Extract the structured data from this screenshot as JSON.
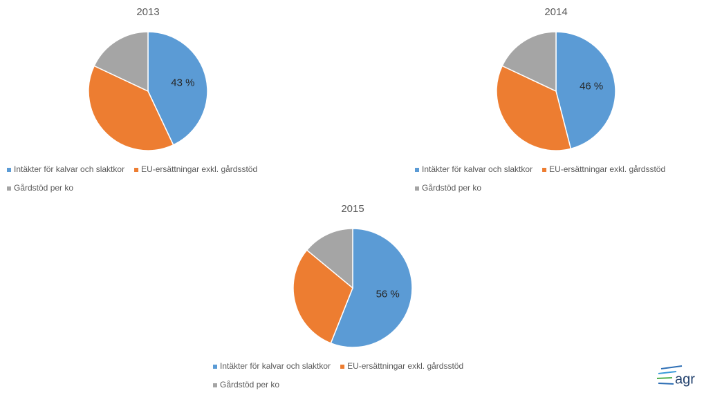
{
  "chart_data": [
    {
      "type": "pie",
      "title": "2013",
      "categories": [
        "Intäkter för kalvar och slaktkor",
        "EU-ersättningar exkl. gårdsstöd",
        "Gårdstöd per ko"
      ],
      "values": [
        43,
        39,
        18
      ],
      "value_labels": [
        "43 %",
        null,
        null
      ],
      "colors": [
        "#5b9bd5",
        "#ed7d31",
        "#a5a5a5"
      ]
    },
    {
      "type": "pie",
      "title": "2014",
      "categories": [
        "Intäkter för kalvar och slaktkor",
        "EU-ersättningar exkl. gårdsstöd",
        "Gårdstöd per ko"
      ],
      "values": [
        46,
        36,
        18
      ],
      "value_labels": [
        "46 %",
        null,
        null
      ],
      "colors": [
        "#5b9bd5",
        "#ed7d31",
        "#a5a5a5"
      ]
    },
    {
      "type": "pie",
      "title": "2015",
      "categories": [
        "Intäkter för kalvar och slaktkor",
        "EU-ersättningar exkl. gårdsstöd",
        "Gårdstöd per ko"
      ],
      "values": [
        56,
        30,
        14
      ],
      "value_labels": [
        "56 %",
        null,
        null
      ],
      "colors": [
        "#5b9bd5",
        "#ed7d31",
        "#a5a5a5"
      ]
    }
  ],
  "logo": {
    "text": "agr"
  }
}
